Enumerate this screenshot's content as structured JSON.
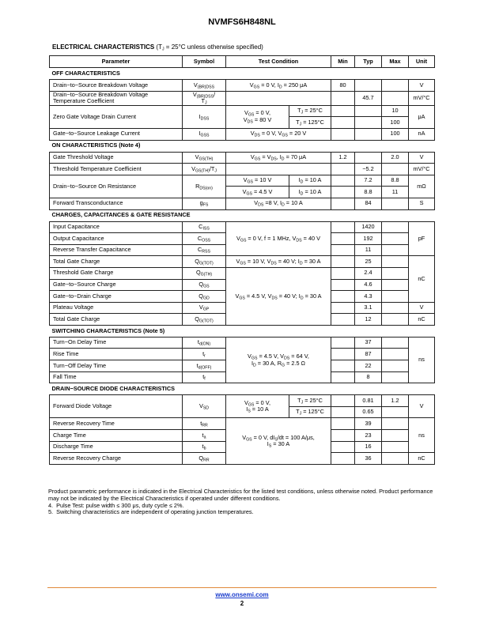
{
  "header": {
    "title": "NVMFS6H848NL"
  },
  "table": {
    "title": "ELECTRICAL CHARACTERISTICS",
    "subtitle": [
      "(T",
      {
        "sub": "J"
      },
      " = 25°C unless otherwise specified)"
    ],
    "columns": [
      "Parameter",
      "Symbol",
      "Test Condition",
      "Min",
      "Typ",
      "Max",
      "Unit"
    ],
    "sections": [
      {
        "title": "OFF CHARACTERISTICS",
        "rows": [
          {
            "parameter": "Drain−to−Source Breakdown Voltage",
            "symbol": [
              "V",
              {
                "sub": "(BR)DSS"
              }
            ],
            "condition": [
              "V",
              {
                "sub": "GS"
              },
              " = 0 V, I",
              {
                "sub": "D"
              },
              " = 250 μA"
            ],
            "min": "80",
            "unit": "V"
          },
          {
            "parameter": "Drain−to−Source Breakdown Voltage\nTemperature Coefficient",
            "symbol": [
              "V",
              {
                "sub": "(BR)DSS"
              },
              "/\nT",
              {
                "sub": "J"
              }
            ],
            "condition": null,
            "typ": "45.7",
            "unit": "mV/°C"
          },
          {
            "parameter": "Zero Gate Voltage Drain Current",
            "symbol": [
              "I",
              {
                "sub": "DSS"
              }
            ],
            "condition_a": [
              "V",
              {
                "sub": "GS"
              },
              " = 0 V,\nV",
              {
                "sub": "DS"
              },
              " = 80 V"
            ],
            "condition_b": [
              "T",
              {
                "sub": "J"
              },
              " = 25°C"
            ],
            "max": "10",
            "unit": "μA"
          },
          {
            "condition_b": [
              "T",
              {
                "sub": "J"
              },
              " = 125°C"
            ],
            "max": "100"
          },
          {
            "parameter": "Gate−to−Source Leakage Current",
            "symbol": [
              "I",
              {
                "sub": "GSS"
              }
            ],
            "condition": [
              "V",
              {
                "sub": "DS"
              },
              " = 0 V, V",
              {
                "sub": "GS"
              },
              " = 20 V"
            ],
            "max": "100",
            "unit": "nA"
          }
        ]
      },
      {
        "title": "ON CHARACTERISTICS (Note 4)",
        "rows": [
          {
            "parameter": "Gate Threshold Voltage",
            "symbol": [
              "V",
              {
                "sub": "GS(TH)"
              }
            ],
            "condition": [
              "V",
              {
                "sub": "GS"
              },
              " = V",
              {
                "sub": "DS"
              },
              ", I",
              {
                "sub": "D"
              },
              " = 70 μA"
            ],
            "min": "1.2",
            "max": "2.0",
            "unit": "V"
          },
          {
            "parameter": "Threshold Temperature Coefficient",
            "symbol": [
              "V",
              {
                "sub": "GS(TH)"
              },
              "/T",
              {
                "sub": "J"
              }
            ],
            "condition": null,
            "typ": "−5.2",
            "unit": "mV/°C"
          },
          {
            "parameter": "Drain−to−Source On Resistance",
            "symbol": [
              "R",
              {
                "sub": "DS(on)"
              }
            ],
            "condition_a": [
              "V",
              {
                "sub": "GS"
              },
              " = 10 V"
            ],
            "condition_b": [
              "I",
              {
                "sub": "D"
              },
              " = 10 A"
            ],
            "typ": "7.2",
            "max": "8.8",
            "unit": "mΩ"
          },
          {
            "condition_a": [
              "V",
              {
                "sub": "GS"
              },
              " = 4.5 V"
            ],
            "condition_b": [
              "I",
              {
                "sub": "D"
              },
              " = 10 A"
            ],
            "typ": "8.8",
            "max": "11"
          },
          {
            "parameter": "Forward Transconductance",
            "symbol": [
              "g",
              {
                "sub": "FS"
              }
            ],
            "condition": [
              "V",
              {
                "sub": "DS"
              },
              " =8 V, I",
              {
                "sub": "D"
              },
              " = 10 A"
            ],
            "typ": "84",
            "unit": "S"
          }
        ]
      },
      {
        "title": "CHARGES, CAPACITANCES & GATE RESISTANCE",
        "rows": [
          {
            "parameter": "Input Capacitance",
            "symbol": [
              "C",
              {
                "sub": "ISS"
              }
            ],
            "condition": [
              "V",
              {
                "sub": "GS"
              },
              " = 0 V, f = 1 MHz, V",
              {
                "sub": "DS"
              },
              " = 40 V"
            ],
            "typ": "1420",
            "unit": "pF"
          },
          {
            "parameter": "Output Capacitance",
            "symbol": [
              "C",
              {
                "sub": "OSS"
              }
            ],
            "typ": "192"
          },
          {
            "parameter": "Reverse Transfer Capacitance",
            "symbol": [
              "C",
              {
                "sub": "RSS"
              }
            ],
            "typ": "11"
          },
          {
            "parameter": "Total Gate Charge",
            "symbol": [
              "Q",
              {
                "sub": "G(TOT)"
              }
            ],
            "condition": [
              "V",
              {
                "sub": "GS"
              },
              " = 10 V, V",
              {
                "sub": "DS"
              },
              " = 40 V; I",
              {
                "sub": "D"
              },
              " = 30 A"
            ],
            "typ": "25",
            "unit": "nC"
          },
          {
            "parameter": "Threshold Gate Charge",
            "symbol": [
              "Q",
              {
                "sub": "G(TH)"
              }
            ],
            "condition": [
              "V",
              {
                "sub": "GS"
              },
              " = 4.5 V, V",
              {
                "sub": "DS"
              },
              " = 40 V; I",
              {
                "sub": "D"
              },
              " = 30 A"
            ],
            "typ": "2.4"
          },
          {
            "parameter": "Gate−to−Source Charge",
            "symbol": [
              "Q",
              {
                "sub": "GS"
              }
            ],
            "typ": "4.6"
          },
          {
            "parameter": "Gate−to−Drain Charge",
            "symbol": [
              "Q",
              {
                "sub": "GD"
              }
            ],
            "typ": "4.3"
          },
          {
            "parameter": "Plateau Voltage",
            "symbol": [
              "V",
              {
                "sub": "GP"
              }
            ],
            "typ": "3.1",
            "unit": "V"
          },
          {
            "parameter": "Total Gate Charge",
            "symbol": [
              "Q",
              {
                "sub": "G(TOT)"
              }
            ],
            "typ": "12",
            "unit": "nC"
          }
        ]
      },
      {
        "title": "SWITCHING CHARACTERISTICS (Note 5)",
        "rows": [
          {
            "parameter": "Turn−On Delay Time",
            "symbol": [
              "t",
              {
                "sub": "d(ON)"
              }
            ],
            "condition": [
              "V",
              {
                "sub": "GS"
              },
              " = 4.5 V, V",
              {
                "sub": "DS"
              },
              " = 64 V,\nI",
              {
                "sub": "D"
              },
              " = 30 A, R",
              {
                "sub": "G"
              },
              " = 2.5 Ω"
            ],
            "typ": "37",
            "unit": "ns"
          },
          {
            "parameter": "Rise Time",
            "symbol": [
              "t",
              {
                "sub": "r"
              }
            ],
            "typ": "87"
          },
          {
            "parameter": "Turn−Off Delay Time",
            "symbol": [
              "t",
              {
                "sub": "d(OFF)"
              }
            ],
            "typ": "22"
          },
          {
            "parameter": "Fall Time",
            "symbol": [
              "t",
              {
                "sub": "f"
              }
            ],
            "typ": "8"
          }
        ]
      },
      {
        "title": "DRAIN−SOURCE DIODE CHARACTERISTICS",
        "rows": [
          {
            "parameter": "Forward Diode Voltage",
            "symbol": [
              "V",
              {
                "sub": "SD"
              }
            ],
            "condition_a": [
              "V",
              {
                "sub": "GS"
              },
              " = 0 V,\nI",
              {
                "sub": "S"
              },
              " = 10 A"
            ],
            "condition_b": [
              "T",
              {
                "sub": "J"
              },
              " = 25°C"
            ],
            "typ": "0.81",
            "max": "1.2",
            "unit": "V"
          },
          {
            "condition_b": [
              "T",
              {
                "sub": "J"
              },
              " = 125°C"
            ],
            "typ": "0.65"
          },
          {
            "parameter": "Reverse Recovery Time",
            "symbol": [
              "t",
              {
                "sub": "RR"
              }
            ],
            "condition": [
              "V",
              {
                "sub": "GS"
              },
              " = 0 V, dI",
              {
                "sub": "S"
              },
              "/dt = 100 A/μs,\nI",
              {
                "sub": "S"
              },
              " = 30 A"
            ],
            "typ": "39",
            "unit": "ns"
          },
          {
            "parameter": "Charge Time",
            "symbol": [
              "t",
              {
                "sub": "a"
              }
            ],
            "typ": "23"
          },
          {
            "parameter": "Discharge Time",
            "symbol": [
              "t",
              {
                "sub": "b"
              }
            ],
            "typ": "16"
          },
          {
            "parameter": "Reverse Recovery Charge",
            "symbol": [
              "Q",
              {
                "sub": "RR"
              }
            ],
            "typ": "36",
            "unit": "nC"
          }
        ]
      }
    ]
  },
  "notes": [
    "Product parametric performance is indicated in the Electrical Characteristics for the listed test conditions, unless otherwise noted. Product performance may not be indicated by the Electrical Characteristics if operated under different conditions.",
    "4.  Pulse Test: pulse width ≤ 300 μs, duty cycle ≤ 2%.",
    "5.  Switching characteristics are independent of operating junction temperatures."
  ],
  "footer": {
    "link": "www.onsemi.com",
    "page": "2"
  }
}
